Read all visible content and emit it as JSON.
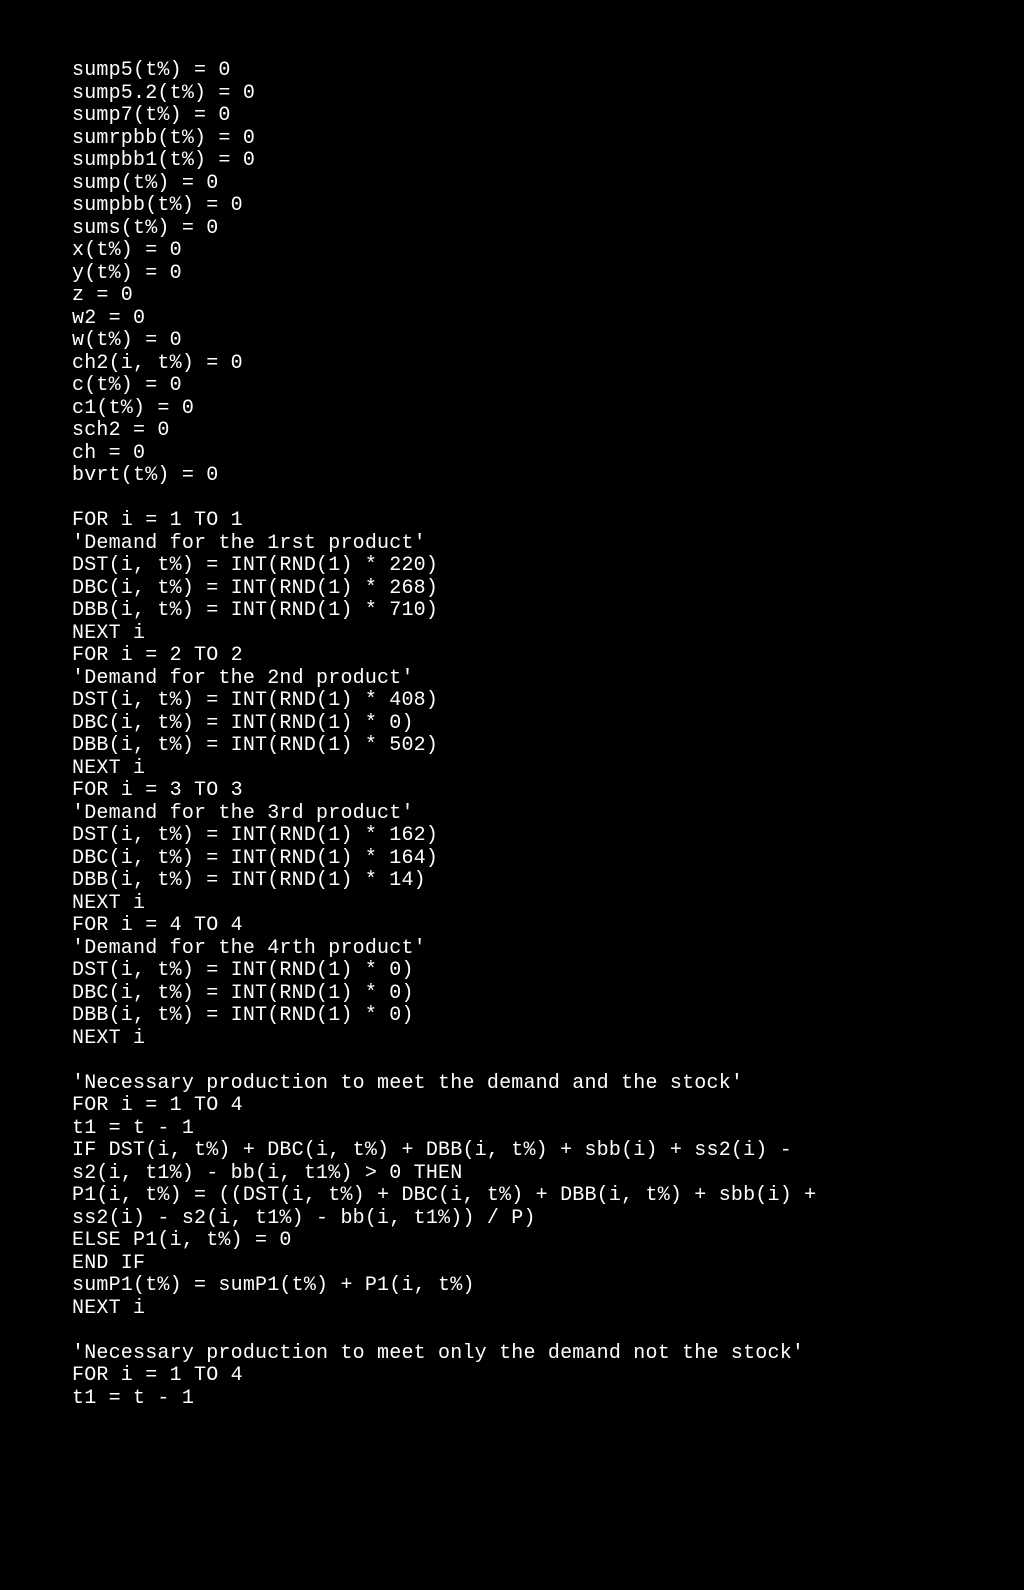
{
  "code": {
    "background_color": "#000000",
    "text_color": "#ffffff",
    "font_family": "Courier New",
    "font_size_pt": 15,
    "lines": [
      "sump5(t%) = 0",
      "sump5.2(t%) = 0",
      "sump7(t%) = 0",
      "sumrpbb(t%) = 0",
      "sumpbb1(t%) = 0",
      "sump(t%) = 0",
      "sumpbb(t%) = 0",
      "sums(t%) = 0",
      "x(t%) = 0",
      "y(t%) = 0",
      "z = 0",
      "w2 = 0",
      "w(t%) = 0",
      "ch2(i, t%) = 0",
      "c(t%) = 0",
      "c1(t%) = 0",
      "sch2 = 0",
      "ch = 0",
      "bvrt(t%) = 0",
      "",
      "FOR i = 1 TO 1",
      "'Demand for the 1rst product'",
      "DST(i, t%) = INT(RND(1) * 220)",
      "DBC(i, t%) = INT(RND(1) * 268)",
      "DBB(i, t%) = INT(RND(1) * 710)",
      "NEXT i",
      "FOR i = 2 TO 2",
      "'Demand for the 2nd product'",
      "DST(i, t%) = INT(RND(1) * 408)",
      "DBC(i, t%) = INT(RND(1) * 0)",
      "DBB(i, t%) = INT(RND(1) * 502)",
      "NEXT i",
      "FOR i = 3 TO 3",
      "'Demand for the 3rd product'",
      "DST(i, t%) = INT(RND(1) * 162)",
      "DBC(i, t%) = INT(RND(1) * 164)",
      "DBB(i, t%) = INT(RND(1) * 14)",
      "NEXT i",
      "FOR i = 4 TO 4",
      "'Demand for the 4rth product'",
      "DST(i, t%) = INT(RND(1) * 0)",
      "DBC(i, t%) = INT(RND(1) * 0)",
      "DBB(i, t%) = INT(RND(1) * 0)",
      "NEXT i",
      "",
      "'Necessary production to meet the demand and the stock'",
      "FOR i = 1 TO 4",
      "t1 = t - 1",
      "IF DST(i, t%) + DBC(i, t%) + DBB(i, t%) + sbb(i) + ss2(i) -",
      "s2(i, t1%) - bb(i, t1%) > 0 THEN",
      "P1(i, t%) = ((DST(i, t%) + DBC(i, t%) + DBB(i, t%) + sbb(i) +",
      "ss2(i) - s2(i, t1%) - bb(i, t1%)) / P)",
      "ELSE P1(i, t%) = 0",
      "END IF",
      "sumP1(t%) = sumP1(t%) + P1(i, t%)",
      "NEXT i",
      "",
      "'Necessary production to meet only the demand not the stock'",
      "FOR i = 1 TO 4",
      "t1 = t - 1"
    ]
  }
}
